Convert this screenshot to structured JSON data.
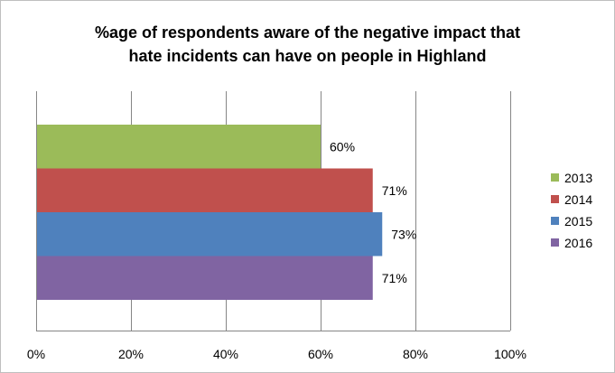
{
  "chart_data": {
    "type": "bar",
    "orientation": "horizontal",
    "title": "%age of respondents aware of the negative impact that hate incidents can have on people in Highland",
    "title_lines": [
      "%age of respondents aware of the negative impact that",
      "hate incidents can have on people in Highland"
    ],
    "xlabel": "",
    "ylabel": "",
    "xlim": [
      0,
      100
    ],
    "x_ticks": [
      "0%",
      "20%",
      "40%",
      "60%",
      "80%",
      "100%"
    ],
    "grid": true,
    "legend_position": "right",
    "series": [
      {
        "name": "2013",
        "value": 60,
        "label": "60%",
        "color": "#9BBB59"
      },
      {
        "name": "2014",
        "value": 71,
        "label": "71%",
        "color": "#C0504D"
      },
      {
        "name": "2015",
        "value": 73,
        "label": "73%",
        "color": "#4F81BD"
      },
      {
        "name": "2016",
        "value": 71,
        "label": "71%",
        "color": "#8064A2"
      }
    ]
  }
}
